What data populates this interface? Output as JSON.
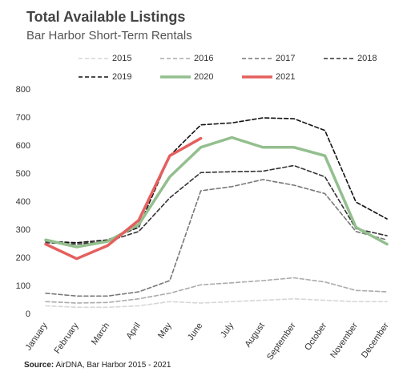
{
  "chart_data": {
    "type": "line",
    "title": "Total Available Listings",
    "subtitle": "Bar Harbor Short-Term Rentals",
    "source_label": "Source:",
    "source": "AirDNA, Bar Harbor 2015 - 2021",
    "categories": [
      "January",
      "February",
      "March",
      "April",
      "May",
      "June",
      "July",
      "August",
      "September",
      "October",
      "November",
      "December"
    ],
    "series": [
      {
        "name": "2015",
        "color": "#d6d6d6",
        "dashed": true,
        "values": [
          30,
          25,
          25,
          30,
          45,
          40,
          45,
          50,
          55,
          50,
          45,
          45
        ]
      },
      {
        "name": "2016",
        "color": "#ababab",
        "dashed": true,
        "values": [
          45,
          40,
          42,
          55,
          75,
          105,
          112,
          120,
          130,
          115,
          85,
          80
        ]
      },
      {
        "name": "2017",
        "color": "#777777",
        "dashed": true,
        "values": [
          75,
          65,
          65,
          80,
          120,
          440,
          455,
          480,
          460,
          430,
          295,
          265
        ]
      },
      {
        "name": "2018",
        "color": "#333333",
        "dashed": true,
        "values": [
          255,
          250,
          260,
          295,
          415,
          505,
          508,
          510,
          530,
          490,
          305,
          280
        ]
      },
      {
        "name": "2019",
        "color": "#111111",
        "dashed": true,
        "values": [
          260,
          255,
          265,
          310,
          565,
          675,
          682,
          700,
          697,
          655,
          400,
          340
        ]
      },
      {
        "name": "2020",
        "color": "#93bf8e",
        "dashed": false,
        "values": [
          265,
          240,
          260,
          320,
          490,
          595,
          630,
          595,
          595,
          565,
          310,
          250
        ]
      },
      {
        "name": "2021",
        "color": "#e4605e",
        "dashed": false,
        "values": [
          250,
          198,
          245,
          335,
          565,
          627,
          null,
          null,
          null,
          null,
          null,
          null
        ]
      }
    ],
    "ylim": [
      0,
      800
    ],
    "yticks": [
      0,
      100,
      200,
      300,
      400,
      500,
      600,
      700,
      800
    ],
    "grid": false,
    "legend": "top"
  }
}
